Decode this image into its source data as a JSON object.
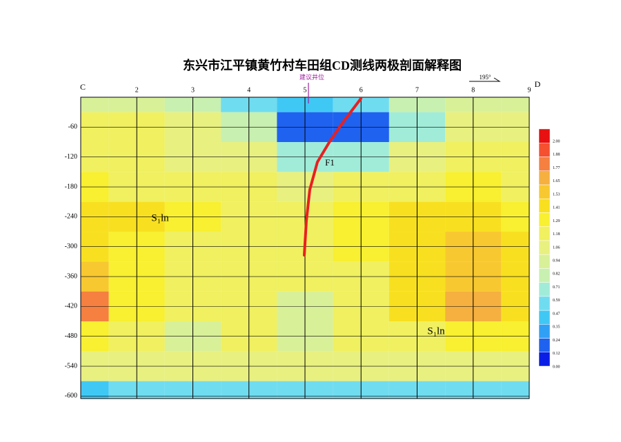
{
  "chart_data": {
    "type": "contour",
    "title": "东兴市江平镇黄竹村车田组CD测线两极剖面解释图",
    "x_start_label": "C",
    "x_end_label": "D",
    "xlim": [
      1,
      9
    ],
    "xticks": [
      2,
      3,
      4,
      5,
      6,
      7,
      8,
      9
    ],
    "ylim": [
      -605,
      0
    ],
    "yticks": [
      -60,
      -120,
      -180,
      -240,
      -300,
      -360,
      -420,
      -480,
      -540,
      -600
    ],
    "x": [
      1,
      2,
      3,
      4,
      5,
      6,
      7,
      8,
      9
    ],
    "y": [
      0,
      -60,
      -120,
      -180,
      -240,
      -300,
      -360,
      -420,
      -480,
      -540,
      -600
    ],
    "values": [
      [
        0.82,
        0.82,
        0.71,
        0.47,
        0.35,
        0.47,
        0.71,
        0.82,
        0.82
      ],
      [
        1.06,
        1.06,
        0.94,
        0.71,
        0.12,
        0.12,
        0.59,
        0.94,
        1.0
      ],
      [
        1.1,
        1.06,
        1.0,
        0.94,
        0.59,
        0.59,
        0.94,
        1.06,
        1.06
      ],
      [
        1.18,
        1.1,
        1.06,
        1.06,
        0.94,
        1.06,
        1.1,
        1.18,
        1.1
      ],
      [
        1.29,
        1.29,
        1.18,
        1.1,
        1.06,
        1.18,
        1.29,
        1.29,
        1.18
      ],
      [
        1.29,
        1.18,
        1.1,
        1.06,
        1.06,
        1.18,
        1.29,
        1.41,
        1.29
      ],
      [
        1.41,
        1.18,
        1.1,
        1.06,
        1.06,
        1.1,
        1.29,
        1.41,
        1.29
      ],
      [
        1.65,
        1.18,
        1.06,
        1.06,
        0.82,
        1.06,
        1.29,
        1.53,
        1.29
      ],
      [
        1.18,
        1.06,
        0.82,
        1.06,
        0.82,
        1.06,
        1.1,
        1.18,
        1.18
      ],
      [
        0.94,
        0.94,
        0.94,
        0.94,
        0.94,
        0.94,
        0.94,
        0.94,
        0.94
      ],
      [
        0.35,
        0.47,
        0.47,
        0.47,
        0.47,
        0.47,
        0.47,
        0.47,
        0.47
      ]
    ],
    "colorbar_ticks": [
      {
        "value": 0,
        "label": "0.00"
      },
      {
        "value": 0.12,
        "label": "0.12"
      },
      {
        "value": 0.24,
        "label": "0.24"
      },
      {
        "value": 0.35,
        "label": "0.35"
      },
      {
        "value": 0.47,
        "label": "0.47"
      },
      {
        "value": 0.59,
        "label": "0.59"
      },
      {
        "value": 0.71,
        "label": "0.71"
      },
      {
        "value": 0.82,
        "label": "0.82"
      },
      {
        "value": 0.94,
        "label": "0.94"
      },
      {
        "value": 1.06,
        "label": "1.06"
      },
      {
        "value": 1.18,
        "label": "1.18"
      },
      {
        "value": 1.29,
        "label": "1.29"
      },
      {
        "value": 1.41,
        "label": "1.41"
      },
      {
        "value": 1.53,
        "label": "1.53"
      },
      {
        "value": 1.65,
        "label": "1.65"
      },
      {
        "value": 1.77,
        "label": "1.77"
      },
      {
        "value": 1.88,
        "label": "1.88"
      },
      {
        "value": 2,
        "label": "2.00"
      }
    ],
    "colors": [
      "#0a1ee6",
      "#1f62f0",
      "#30a0f5",
      "#40c8f5",
      "#70dcf0",
      "#a0ecd8",
      "#c8f0b0",
      "#d8f098",
      "#e8f080",
      "#f0f060",
      "#f8f030",
      "#f8e020",
      "#f8c830",
      "#f5b040",
      "#f58040",
      "#f55030",
      "#e81010"
    ],
    "annotations": {
      "well": "建议井位",
      "azimuth": "195°",
      "fault": "F1",
      "formation_left": "S₁ln",
      "formation_right": "S₁ln"
    }
  }
}
